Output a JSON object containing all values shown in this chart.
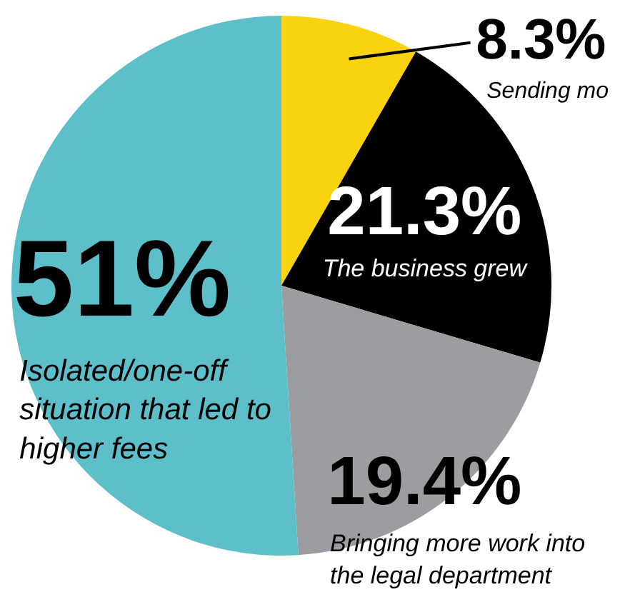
{
  "chart_data": {
    "type": "pie",
    "categories": [
      "Sending mo",
      "The business grew",
      "Bringing more work into the legal department",
      "Isolated/one-off situation that led to higher fees"
    ],
    "values": [
      8.3,
      21.3,
      19.4,
      51
    ],
    "colors": [
      "#f9d30f",
      "#000000",
      "#9c9da1",
      "#5dbfc9"
    ],
    "value_labels": [
      "8.3%",
      "21.3%",
      "19.4%",
      "51%"
    ],
    "legend": false
  }
}
